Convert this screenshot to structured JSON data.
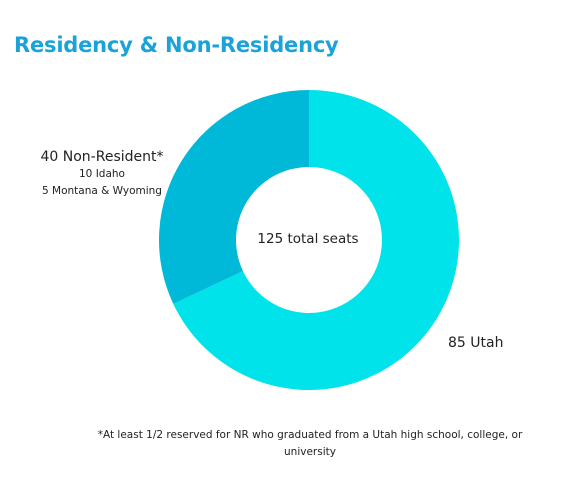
{
  "chart_data": {
    "type": "pie",
    "title": "Residency & Non-Residency",
    "center_label": "125 total seats",
    "slices": [
      {
        "label": "85 Utah",
        "value": 85,
        "color": "#00e3ea"
      },
      {
        "label": "40 Non-Resident*",
        "value": 40,
        "color": "#00b8d8",
        "details": [
          "10 Idaho",
          "5 Montana & Wyoming"
        ]
      }
    ],
    "footnote": "*At least 1/2 reserved for NR who graduated from a Utah high school, college, or university"
  }
}
